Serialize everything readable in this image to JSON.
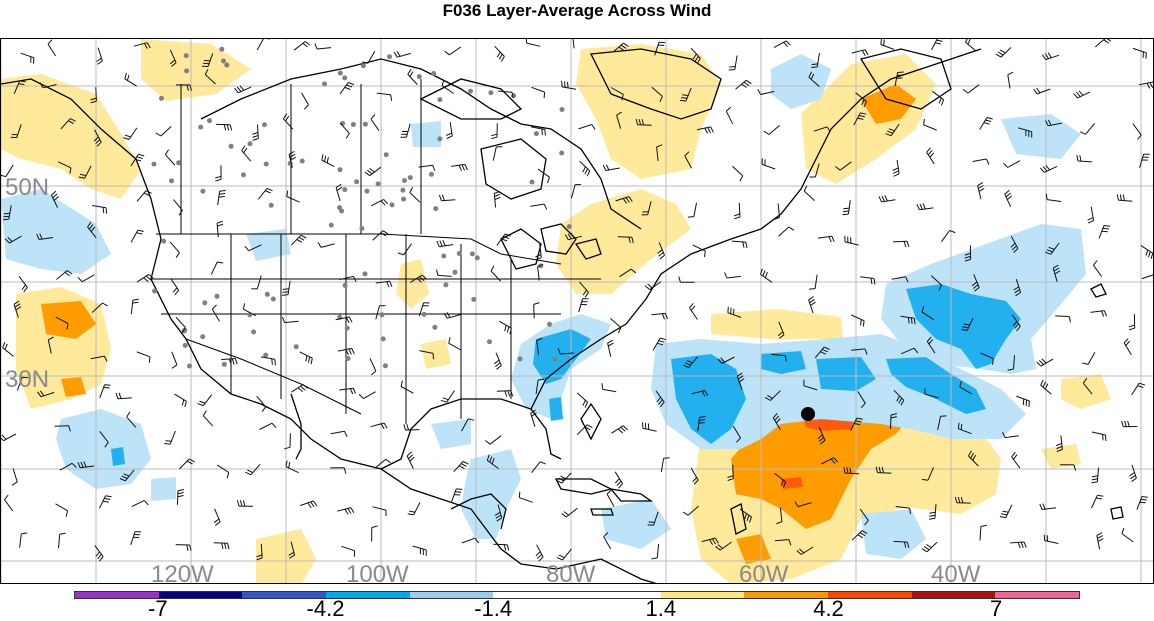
{
  "title": "F036 Layer-Average Across Wind",
  "latitude_labels": [
    "50N",
    "30N"
  ],
  "longitude_labels": [
    "120W",
    "100W",
    "80W",
    "60W",
    "40W"
  ],
  "colorbar": {
    "colors": [
      "#9933cc",
      "#000080",
      "#3355cc",
      "#00aaee",
      "#99ccee",
      "#ffffff",
      "#ffffff",
      "#ffe680",
      "#ff9900",
      "#ff4400",
      "#aa1111",
      "#ee6699"
    ],
    "labels": [
      "-7",
      "-4.2",
      "-1.4",
      "1.4",
      "4.2",
      "7"
    ]
  },
  "colors": {
    "positive_light": "#ffe99a",
    "positive_mid": "#ff9c00",
    "positive_strong": "#ff5a10",
    "negative_light": "#bde3f8",
    "negative_mid": "#22b1ee",
    "land_outline": "#000000",
    "grid": "#bbbbbb",
    "station_dot": "#808080"
  },
  "storm_marker": "storm-center-dot"
}
